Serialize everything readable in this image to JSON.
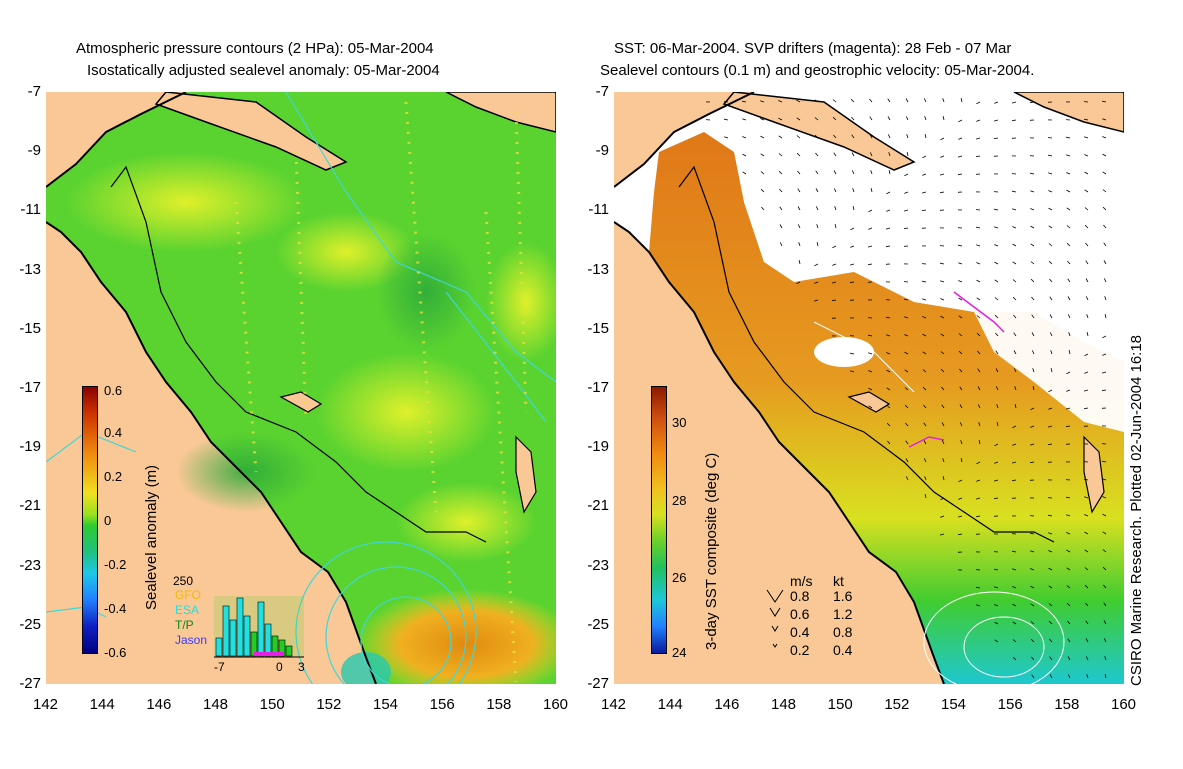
{
  "left_panel": {
    "title_line1": "Atmospheric pressure contours (2 HPa): 05-Mar-2004",
    "title_line2": "Isostatically adjusted sealevel anomaly: 05-Mar-2004",
    "colorbar": {
      "label": "Sealevel anomaly (m)",
      "ticks": [
        "0.6",
        "0.4",
        "0.2",
        "0",
        "-0.2",
        "-0.4",
        "-0.6"
      ]
    },
    "inset_histogram": {
      "max_label": "250",
      "legend": [
        {
          "name": "GFO",
          "color": "#f2b705"
        },
        {
          "name": "ESA",
          "color": "#22e0e0"
        },
        {
          "name": "T/P",
          "color": "#22cc22"
        },
        {
          "name": "Jason",
          "color": "#3a3aff"
        }
      ],
      "x_ticks": [
        "-7",
        "0",
        "3"
      ]
    }
  },
  "right_panel": {
    "title_line1": "SST: 06-Mar-2004. SVP drifters (magenta): 28 Feb - 07 Mar",
    "title_line2": "Sealevel contours (0.1 m) and geostrophic velocity: 05-Mar-2004.",
    "colorbar": {
      "label": "3-day SST composite (deg C)",
      "ticks": [
        "30",
        "28",
        "26",
        "24"
      ]
    },
    "velocity_legend": {
      "header_ms": "m/s",
      "header_kt": "kt",
      "rows": [
        {
          "ms": "0.8",
          "kt": "1.6"
        },
        {
          "ms": "0.6",
          "kt": "1.2"
        },
        {
          "ms": "0.4",
          "kt": "0.8"
        },
        {
          "ms": "0.2",
          "kt": "0.4"
        }
      ]
    },
    "credit": "CSIRO Marine Research. Plotted 02-Jun-2004 16:18"
  },
  "axes": {
    "y_ticks": [
      "-7",
      "-9",
      "-11",
      "-13",
      "-15",
      "-17",
      "-19",
      "-21",
      "-23",
      "-25",
      "-27"
    ],
    "x_ticks": [
      "142",
      "144",
      "146",
      "148",
      "150",
      "152",
      "154",
      "156",
      "158",
      "160"
    ]
  },
  "colors": {
    "land": "#f9c896",
    "ocean_green": "#52d12a",
    "ocean_yellow": "#d7f02a",
    "sst_orange": "#e68a1c",
    "sst_white": "#ffffff",
    "contour_cyan": "#3fd7d7",
    "drifter_magenta": "#e61ee6"
  }
}
